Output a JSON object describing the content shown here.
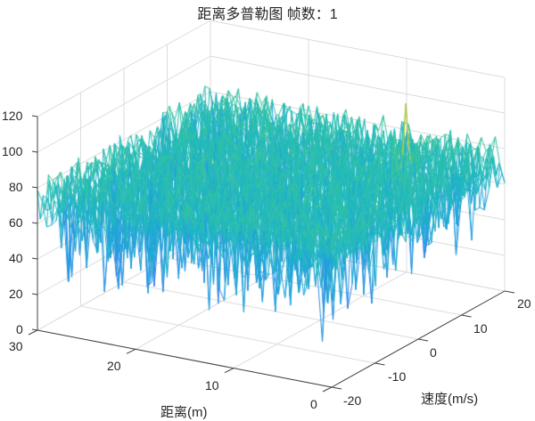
{
  "chart_data": {
    "type": "surface",
    "title": "距离多普勒图 帧数：1",
    "xlabel": "速度(m/s)",
    "ylabel": "距离(m)",
    "zlabel": "",
    "x_axis": {
      "name": "velocity",
      "range": [
        -20,
        20
      ],
      "ticks": [
        -20,
        -10,
        0,
        10,
        20
      ]
    },
    "y_axis": {
      "name": "range",
      "range": [
        0,
        30
      ],
      "ticks": [
        0,
        10,
        20,
        30
      ]
    },
    "z_axis": {
      "range": [
        0,
        120
      ],
      "ticks": [
        0,
        20,
        40,
        60,
        80,
        100,
        120
      ]
    },
    "grid": true,
    "colormap": "parula",
    "surface_description": "Noise floor of range-Doppler map, values mostly ~50-90 dB with random dips down to ~20-40; single target peak reaching ~110-115 at range ≈ 5 m, velocity ≈ 8 m/s (yellow).",
    "noise_floor": {
      "mean": 68,
      "min_approx": 20,
      "max_approx": 92
    },
    "peaks": [
      {
        "range": 5,
        "velocity": 8,
        "value": 113
      }
    ],
    "frame": 1
  },
  "labels": {
    "title": "距离多普勒图 帧数：1",
    "z_ticks": [
      "0",
      "20",
      "40",
      "60",
      "80",
      "100",
      "120"
    ],
    "range_ticks": [
      "0",
      "10",
      "20",
      "30"
    ],
    "velocity_ticks": [
      "-20",
      "-10",
      "0",
      "10",
      "20"
    ],
    "range_label": "距离(m)",
    "velocity_label": "速度(m/s)"
  },
  "colors": {
    "axis": "#404040",
    "grid": "#dcdcdc",
    "text": "#262626",
    "colormap_low": "#3e7ef0",
    "colormap_mid": "#1fb5c4",
    "colormap_midhigh": "#35c28a",
    "colormap_high": "#f5c930"
  }
}
